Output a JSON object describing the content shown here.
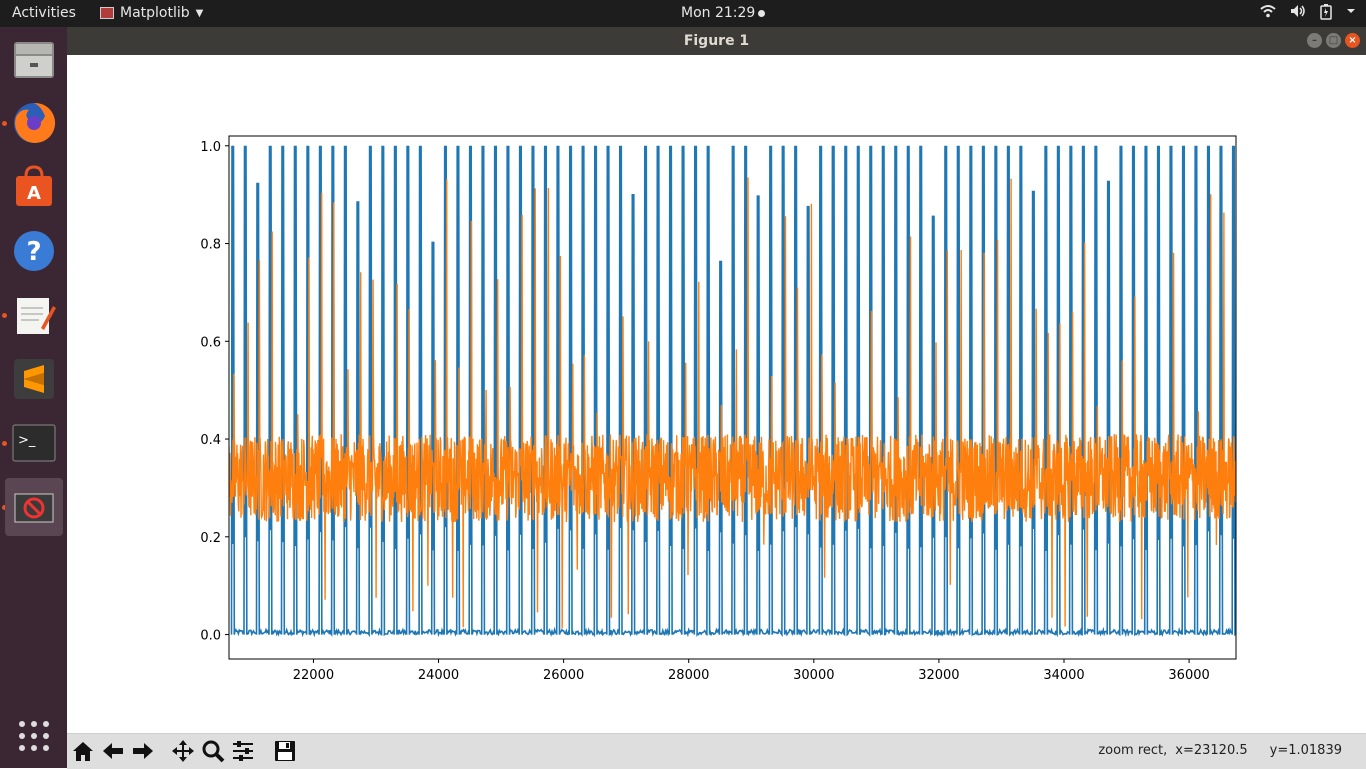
{
  "topbar": {
    "activities": "Activities",
    "app_name": "Matplotlib",
    "clock": "Mon 21:29"
  },
  "window": {
    "title": "Figure 1"
  },
  "dock": {
    "items": [
      "file-manager-icon",
      "firefox-icon",
      "software-center-icon",
      "help-icon",
      "text-editor-icon",
      "sublime-text-icon",
      "terminal-icon",
      "matplotlib-figure-icon",
      "show-applications-icon"
    ]
  },
  "toolbar": {
    "buttons": [
      "home",
      "back",
      "forward",
      "pan",
      "zoom",
      "configure-subplots",
      "save"
    ],
    "status_mode": "zoom rect,",
    "status_x": "x=23120.5",
    "status_y": "y=1.01839"
  },
  "colors": {
    "series1": "#1f77b4",
    "series2": "#ff7f0e"
  },
  "chart_data": {
    "type": "line",
    "title": "",
    "xlabel": "",
    "ylabel": "",
    "xlim": [
      20650,
      36750
    ],
    "ylim": [
      -0.05,
      1.02
    ],
    "xticks": [
      22000,
      24000,
      26000,
      28000,
      30000,
      32000,
      34000,
      36000
    ],
    "xtick_labels": [
      "22000",
      "24000",
      "26000",
      "28000",
      "30000",
      "32000",
      "34000",
      "36000"
    ],
    "yticks": [
      0.0,
      0.2,
      0.4,
      0.6,
      0.8,
      1.0
    ],
    "ytick_labels": [
      "0.0",
      "0.2",
      "0.4",
      "0.6",
      "0.8",
      "1.0"
    ],
    "grid": false,
    "legend": "none",
    "series": [
      {
        "description_note_free": true,
        "color": "#1f77b4",
        "pattern": "pulses",
        "baseline": 0.0,
        "pulse_period": 200,
        "pulse_peak": 1.0,
        "pulse_min": 0.17
      },
      {
        "color": "#ff7f0e",
        "pattern": "noisy",
        "mean": 0.32,
        "noise_band": [
          0.25,
          0.45
        ],
        "spike_max": 0.96,
        "dip_min": 0.0
      }
    ]
  }
}
